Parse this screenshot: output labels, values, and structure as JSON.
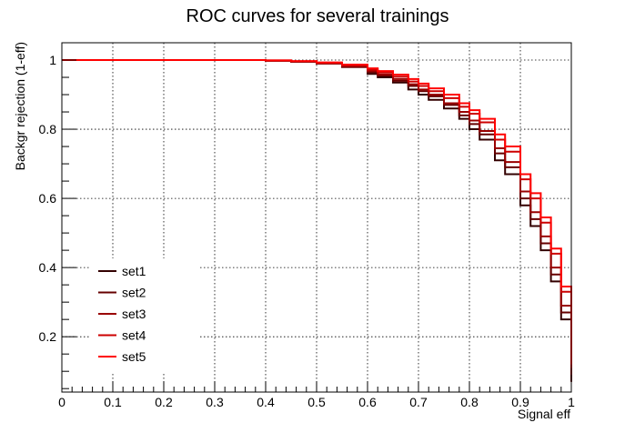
{
  "chart_data": {
    "type": "line",
    "title": "ROC curves for several trainings",
    "xlabel": "Signal eff",
    "ylabel": "Backgr rejection (1-eff)",
    "xlim": [
      0,
      1
    ],
    "ylim": [
      0.04,
      1.05
    ],
    "x_ticks": [
      0,
      0.1,
      0.2,
      0.3,
      0.4,
      0.5,
      0.6,
      0.7,
      0.8,
      0.9,
      1
    ],
    "x_tick_labels": [
      "0",
      "0.1",
      "0.2",
      "0.3",
      "0.4",
      "0.5",
      "0.6",
      "0.7",
      "0.8",
      "0.9",
      "1"
    ],
    "y_ticks": [
      0.2,
      0.4,
      0.6,
      0.8,
      1
    ],
    "y_tick_labels": [
      "0.2",
      "0.4",
      "0.6",
      "0.8",
      "1"
    ],
    "grid": true,
    "legend_position": "bottom-left",
    "step": true,
    "series": [
      {
        "name": "set1",
        "color": "#330000",
        "x": [
          0,
          0.3,
          0.4,
          0.45,
          0.5,
          0.55,
          0.6,
          0.62,
          0.65,
          0.68,
          0.7,
          0.72,
          0.75,
          0.78,
          0.8,
          0.82,
          0.85,
          0.87,
          0.9,
          0.92,
          0.94,
          0.96,
          0.98,
          1.0
        ],
        "y": [
          1.0,
          1.0,
          0.998,
          0.995,
          0.99,
          0.98,
          0.96,
          0.95,
          0.935,
          0.915,
          0.9,
          0.885,
          0.86,
          0.83,
          0.8,
          0.77,
          0.71,
          0.67,
          0.58,
          0.52,
          0.45,
          0.36,
          0.25,
          0.07
        ]
      },
      {
        "name": "set2",
        "color": "#660000",
        "x": [
          0,
          0.3,
          0.4,
          0.45,
          0.5,
          0.55,
          0.6,
          0.62,
          0.65,
          0.68,
          0.7,
          0.72,
          0.75,
          0.78,
          0.8,
          0.82,
          0.85,
          0.87,
          0.9,
          0.92,
          0.94,
          0.96,
          0.98,
          1.0
        ],
        "y": [
          1.0,
          1.0,
          0.998,
          0.995,
          0.99,
          0.98,
          0.965,
          0.955,
          0.94,
          0.925,
          0.91,
          0.895,
          0.87,
          0.84,
          0.815,
          0.785,
          0.73,
          0.69,
          0.6,
          0.54,
          0.47,
          0.38,
          0.27,
          0.07
        ]
      },
      {
        "name": "set3",
        "color": "#990000",
        "x": [
          0,
          0.3,
          0.4,
          0.45,
          0.5,
          0.55,
          0.6,
          0.62,
          0.65,
          0.68,
          0.7,
          0.72,
          0.75,
          0.78,
          0.8,
          0.82,
          0.85,
          0.87,
          0.9,
          0.92,
          0.94,
          0.96,
          0.98,
          1.0
        ],
        "y": [
          1.0,
          1.0,
          0.998,
          0.996,
          0.99,
          0.982,
          0.968,
          0.958,
          0.945,
          0.93,
          0.915,
          0.9,
          0.875,
          0.85,
          0.825,
          0.795,
          0.745,
          0.705,
          0.62,
          0.56,
          0.49,
          0.4,
          0.29,
          0.09
        ]
      },
      {
        "name": "set4",
        "color": "#cc0000",
        "x": [
          0,
          0.3,
          0.4,
          0.45,
          0.5,
          0.55,
          0.6,
          0.62,
          0.65,
          0.68,
          0.7,
          0.72,
          0.75,
          0.78,
          0.8,
          0.82,
          0.85,
          0.87,
          0.9,
          0.92,
          0.94,
          0.96,
          0.98,
          1.0
        ],
        "y": [
          1.0,
          1.0,
          0.999,
          0.996,
          0.992,
          0.985,
          0.972,
          0.964,
          0.952,
          0.938,
          0.925,
          0.91,
          0.89,
          0.865,
          0.845,
          0.82,
          0.77,
          0.735,
          0.655,
          0.6,
          0.53,
          0.44,
          0.33,
          0.11
        ]
      },
      {
        "name": "set5",
        "color": "#ff0000",
        "x": [
          0,
          0.3,
          0.4,
          0.45,
          0.5,
          0.55,
          0.6,
          0.62,
          0.65,
          0.68,
          0.7,
          0.72,
          0.75,
          0.78,
          0.8,
          0.82,
          0.85,
          0.87,
          0.9,
          0.92,
          0.94,
          0.96,
          0.98,
          1.0
        ],
        "y": [
          1.0,
          1.0,
          0.999,
          0.997,
          0.993,
          0.987,
          0.976,
          0.968,
          0.958,
          0.945,
          0.932,
          0.918,
          0.9,
          0.875,
          0.855,
          0.83,
          0.785,
          0.75,
          0.67,
          0.615,
          0.545,
          0.455,
          0.345,
          0.12
        ]
      }
    ]
  }
}
